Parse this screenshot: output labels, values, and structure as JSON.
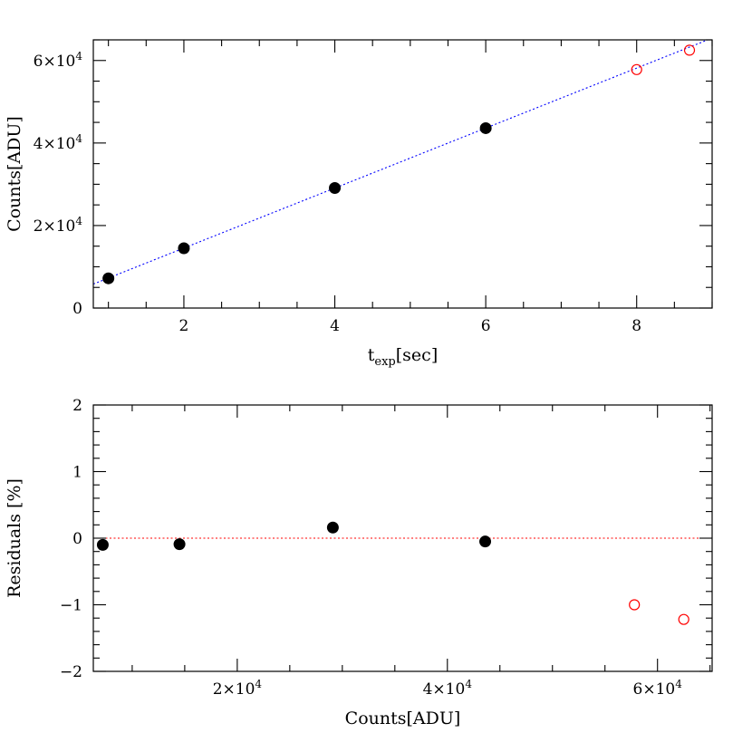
{
  "chart_data": [
    {
      "type": "scatter",
      "xlabel": "t",
      "xlabel_sub": "exp",
      "xlabel_unit": "[sec]",
      "ylabel": "Counts[ADU]",
      "xlim": [
        0.8,
        9.0
      ],
      "ylim": [
        0,
        65000
      ],
      "x_ticks": [
        {
          "value": 2,
          "label": "2"
        },
        {
          "value": 4,
          "label": "4"
        },
        {
          "value": 6,
          "label": "6"
        },
        {
          "value": 8,
          "label": "8"
        }
      ],
      "x_minor_step": 0.5,
      "y_ticks": [
        {
          "value": 0,
          "label": "0",
          "base": "",
          "exp": ""
        },
        {
          "value": 20000,
          "label": "",
          "base": "2×10",
          "exp": "4"
        },
        {
          "value": 40000,
          "label": "",
          "base": "4×10",
          "exp": "4"
        },
        {
          "value": 60000,
          "label": "",
          "base": "6×10",
          "exp": "4"
        }
      ],
      "y_minor_step": 5000,
      "series": [
        {
          "style": "filled",
          "color": "#000000",
          "x": [
            1,
            2,
            4,
            6
          ],
          "y": [
            7200,
            14500,
            29100,
            43600
          ]
        },
        {
          "style": "open",
          "color": "#ff0000",
          "x": [
            8.0,
            8.7
          ],
          "y": [
            57800,
            62500
          ]
        }
      ],
      "fit_line": {
        "style": "dotted",
        "color": "#0000ff",
        "slope": 7270,
        "intercept": 0
      }
    },
    {
      "type": "scatter",
      "xlabel": "Counts[ADU]",
      "ylabel": "Residuals [%]",
      "xlim": [
        6300,
        65200
      ],
      "ylim": [
        -2,
        2
      ],
      "x_ticks": [
        {
          "value": 20000,
          "base": "2×10",
          "exp": "4"
        },
        {
          "value": 40000,
          "base": "4×10",
          "exp": "4"
        },
        {
          "value": 60000,
          "base": "6×10",
          "exp": "4"
        }
      ],
      "x_minor_step": 5000,
      "y_ticks": [
        {
          "value": -2,
          "label": "−2"
        },
        {
          "value": -1,
          "label": "−1"
        },
        {
          "value": 0,
          "label": "0"
        },
        {
          "value": 1,
          "label": "1"
        },
        {
          "value": 2,
          "label": "2"
        }
      ],
      "y_minor_step": 0.2,
      "series": [
        {
          "style": "filled",
          "color": "#000000",
          "x": [
            7200,
            14500,
            29100,
            43600
          ],
          "y": [
            -0.1,
            -0.09,
            0.16,
            -0.05
          ]
        },
        {
          "style": "open",
          "color": "#ff0000",
          "x": [
            57800,
            62500
          ],
          "y": [
            -1.0,
            -1.22
          ]
        }
      ],
      "zero_line": {
        "style": "dotted",
        "color": "#ff0000",
        "value": 0
      }
    }
  ]
}
